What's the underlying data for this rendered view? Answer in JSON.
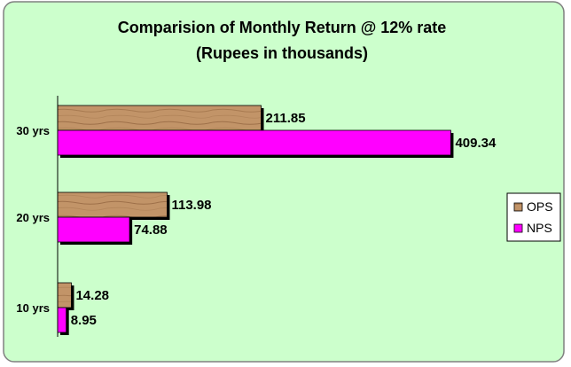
{
  "chart_data": {
    "type": "bar",
    "orientation": "horizontal",
    "title": "Comparision of Monthly Return @ 12% rate",
    "subtitle": "(Rupees in thousands)",
    "categories": [
      "10 yrs",
      "20 yrs",
      "30 yrs"
    ],
    "series": [
      {
        "name": "OPS",
        "values": [
          14.28,
          113.98,
          211.85
        ],
        "color": "#c29468"
      },
      {
        "name": "NPS",
        "values": [
          8.95,
          74.88,
          409.34
        ],
        "color": "#ff00ff"
      }
    ],
    "xlim": [
      0,
      420
    ],
    "grid": false,
    "legend_position": "right",
    "background": "#ccffcc",
    "frame": "#808080"
  }
}
